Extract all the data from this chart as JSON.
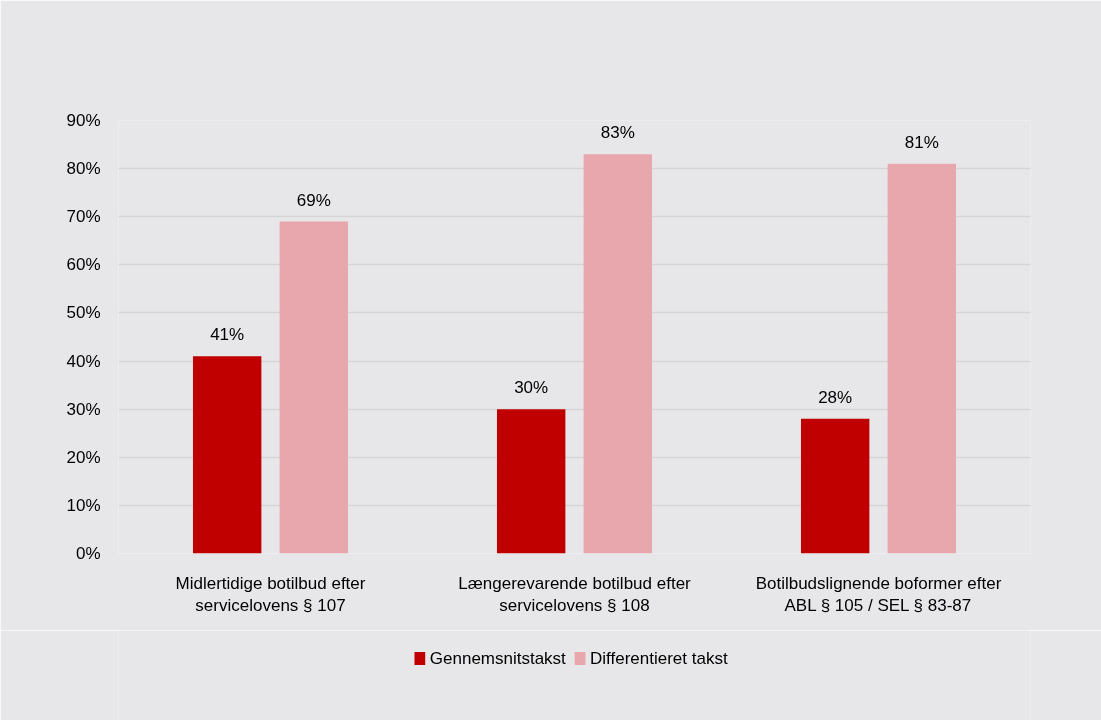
{
  "chart_data": {
    "type": "bar",
    "categories": [
      "Midlertidige botilbud efter servicelovens § 107",
      "Længerevarende botilbud efter servicelovens § 108",
      "Botilbudslignende boformer efter ABL § 105 / SEL § 83-87"
    ],
    "series": [
      {
        "name": "Gennemsnitstakst",
        "color": "#c00000",
        "values": [
          41,
          30,
          28
        ],
        "value_labels": [
          "41%",
          "30%",
          "28%"
        ]
      },
      {
        "name": "Differentieret takst",
        "color": "#e8a7ad",
        "values": [
          69,
          83,
          81
        ],
        "value_labels": [
          "69%",
          "83%",
          "81%"
        ]
      }
    ],
    "ylim": [
      0,
      90
    ],
    "yticks": [
      {
        "value": 0,
        "label": "0%"
      },
      {
        "value": 10,
        "label": "10%"
      },
      {
        "value": 20,
        "label": "20%"
      },
      {
        "value": 30,
        "label": "30%"
      },
      {
        "value": 40,
        "label": "40%"
      },
      {
        "value": 50,
        "label": "50%"
      },
      {
        "value": 60,
        "label": "60%"
      },
      {
        "value": 70,
        "label": "70%"
      },
      {
        "value": 80,
        "label": "80%"
      },
      {
        "value": 90,
        "label": "90%"
      }
    ],
    "grid": "y",
    "legend": "bottom"
  }
}
